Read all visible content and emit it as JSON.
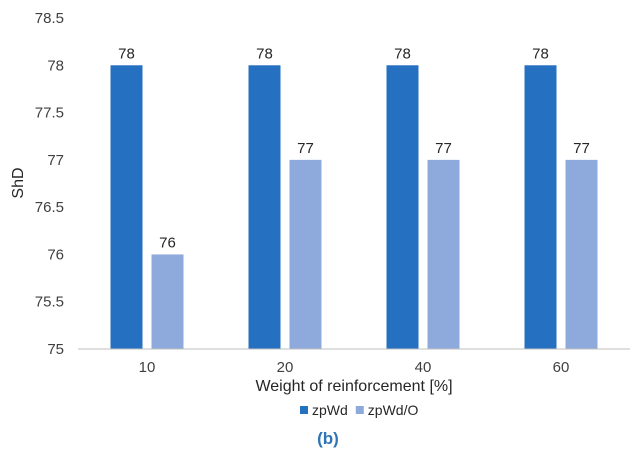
{
  "chart_data": {
    "type": "bar",
    "title": "",
    "xlabel": "Weight of reinforcement [%]",
    "ylabel": "ShD",
    "categories": [
      "10",
      "20",
      "40",
      "60"
    ],
    "series": [
      {
        "name": "zpWd",
        "values": [
          78,
          78,
          78,
          78
        ],
        "color": "#2570c0"
      },
      {
        "name": "zpWd/O",
        "values": [
          76,
          77,
          77,
          77
        ],
        "color": "#8eaadc"
      }
    ],
    "ylim": [
      75,
      78.5
    ],
    "yticks": [
      "75",
      "75.5",
      "76",
      "76.5",
      "77",
      "77.5",
      "78",
      "78.5"
    ],
    "grid": false,
    "legend": "bottom",
    "caption": "(b)"
  }
}
